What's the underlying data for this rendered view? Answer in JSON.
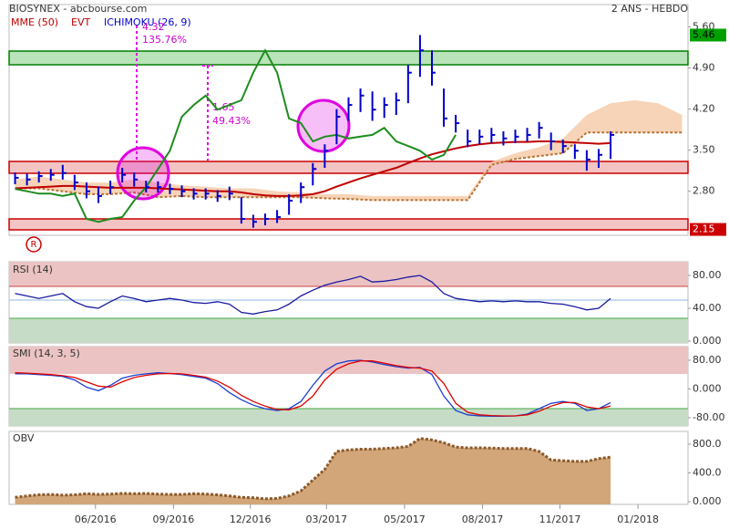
{
  "header": {
    "left": "BIOSYNEX - abcbourse.com",
    "right": "2 ANS - HEBDO",
    "evt": "EVT"
  },
  "chart_data": [
    {
      "type": "ohlc",
      "color": "#0000cc",
      "x": [
        0,
        2,
        4,
        6,
        8,
        10,
        12,
        14,
        16,
        18,
        20,
        22,
        24,
        26,
        28,
        30,
        32,
        34,
        36,
        38,
        40,
        42,
        44,
        46,
        48,
        50,
        52,
        54,
        56,
        58,
        60,
        62,
        64,
        66,
        68,
        70,
        72,
        74,
        76,
        78,
        80,
        82,
        84,
        86,
        88,
        90,
        92,
        94,
        96,
        98,
        100
      ],
      "high": [
        3.12,
        3.1,
        3.14,
        3.18,
        3.25,
        3.08,
        2.95,
        2.88,
        2.98,
        3.2,
        3.12,
        2.98,
        2.97,
        2.93,
        2.9,
        2.85,
        2.85,
        2.82,
        2.88,
        2.7,
        2.4,
        2.42,
        2.48,
        2.75,
        2.95,
        3.28,
        3.6,
        4.2,
        4.4,
        4.55,
        4.5,
        4.4,
        4.48,
        4.95,
        5.46,
        5.2,
        4.55,
        4.1,
        3.85,
        3.85,
        3.88,
        3.82,
        3.85,
        3.88,
        3.98,
        3.8,
        3.68,
        3.6,
        3.5,
        3.52,
        3.82
      ],
      "low": [
        2.92,
        2.9,
        2.95,
        2.98,
        3.0,
        2.82,
        2.68,
        2.6,
        2.75,
        2.95,
        2.88,
        2.78,
        2.78,
        2.75,
        2.7,
        2.66,
        2.66,
        2.62,
        2.65,
        2.25,
        2.18,
        2.22,
        2.26,
        2.4,
        2.6,
        2.9,
        3.2,
        3.6,
        4.0,
        4.15,
        4.0,
        4.05,
        4.1,
        4.3,
        4.75,
        4.6,
        3.9,
        3.8,
        3.55,
        3.6,
        3.62,
        3.58,
        3.62,
        3.65,
        3.7,
        3.5,
        3.45,
        3.35,
        3.15,
        3.2,
        3.35
      ],
      "close": [
        3.03,
        3.0,
        3.06,
        3.08,
        3.11,
        2.95,
        2.8,
        2.72,
        2.87,
        3.08,
        3.0,
        2.87,
        2.87,
        2.84,
        2.8,
        2.76,
        2.76,
        2.72,
        2.76,
        2.33,
        2.28,
        2.33,
        2.36,
        2.64,
        2.87,
        3.18,
        3.49,
        4.07,
        4.27,
        4.43,
        4.19,
        4.27,
        4.35,
        4.82,
        5.2,
        4.82,
        4.04,
        3.96,
        3.65,
        3.73,
        3.76,
        3.7,
        3.73,
        3.76,
        3.88,
        3.65,
        3.57,
        3.49,
        3.34,
        3.42,
        3.76
      ],
      "series": [
        {
          "name": "MME (50)",
          "color": "#c00000",
          "values": [
            2.85,
            2.86,
            2.87,
            2.88,
            2.89,
            2.89,
            2.88,
            2.87,
            2.86,
            2.86,
            2.86,
            2.86,
            2.85,
            2.84,
            2.83,
            2.82,
            2.81,
            2.8,
            2.8,
            2.78,
            2.75,
            2.73,
            2.72,
            2.72,
            2.73,
            2.75,
            2.8,
            2.88,
            2.95,
            3.02,
            3.08,
            3.14,
            3.2,
            3.28,
            3.36,
            3.43,
            3.48,
            3.53,
            3.57,
            3.6,
            3.62,
            3.63,
            3.64,
            3.64,
            3.65,
            3.65,
            3.64,
            3.63,
            3.62,
            3.61,
            3.62
          ]
        },
        {
          "name": "ICHIMOKU (26, 9)",
          "color": "#1e8c1e",
          "values": [
            2.84,
            2.8,
            2.76,
            2.76,
            2.72,
            2.76,
            2.33,
            2.28,
            2.33,
            2.36,
            2.64,
            2.87,
            3.18,
            3.49,
            4.07,
            4.27,
            4.43,
            4.19,
            4.27,
            4.35,
            4.82,
            5.2,
            4.82,
            4.04,
            3.96,
            3.65,
            3.73,
            3.76,
            3.7,
            3.73,
            3.76,
            3.88,
            3.65,
            3.57,
            3.49,
            3.34,
            3.42,
            3.76,
            null,
            null,
            null,
            null,
            null,
            null,
            null,
            null,
            null,
            null,
            null,
            null,
            null
          ]
        }
      ],
      "cloud": {
        "color": "#f5c9a6",
        "edge": "#b87333",
        "x": [
          0,
          4,
          8,
          12,
          16,
          20,
          24,
          28,
          32,
          36,
          40,
          44,
          48,
          52,
          56,
          60,
          64,
          68,
          72,
          76,
          80,
          84,
          88,
          92,
          96,
          100,
          104,
          108,
          112
        ],
        "upper": [
          3.0,
          3.05,
          3.0,
          2.95,
          2.95,
          3.0,
          2.95,
          2.9,
          2.88,
          2.85,
          2.85,
          2.8,
          2.78,
          2.75,
          2.75,
          2.72,
          2.72,
          2.72,
          2.72,
          2.72,
          3.3,
          3.45,
          3.55,
          3.7,
          4.1,
          4.3,
          4.35,
          4.3,
          4.1
        ],
        "lower": [
          2.85,
          2.85,
          2.8,
          2.75,
          2.75,
          2.78,
          2.7,
          2.72,
          2.7,
          2.7,
          2.7,
          2.7,
          2.7,
          2.68,
          2.67,
          2.65,
          2.65,
          2.65,
          2.65,
          2.65,
          3.25,
          3.35,
          3.4,
          3.45,
          3.8,
          3.8,
          3.8,
          3.8,
          3.8
        ]
      },
      "xlim": [
        -1,
        113
      ],
      "ylim": [
        2.05,
        5.98
      ],
      "yticks": [
        {
          "value": 5.6,
          "label": "5.60"
        },
        {
          "value": 4.9,
          "label": "4.90"
        },
        {
          "value": 4.2,
          "label": "4.20"
        },
        {
          "value": 3.5,
          "label": "3.50"
        },
        {
          "value": 2.8,
          "label": "2.80"
        }
      ],
      "xticks": [
        {
          "value": 13.5,
          "label": "06/2016"
        },
        {
          "value": 26.6,
          "label": "09/2016"
        },
        {
          "value": 39.5,
          "label": "12/2016"
        },
        {
          "value": 52.3,
          "label": "03/2017"
        },
        {
          "value": 65.4,
          "label": "05/2017"
        },
        {
          "value": 78.5,
          "label": "08/2017"
        },
        {
          "value": 91.5,
          "label": "11/2017"
        },
        {
          "value": 104.6,
          "label": "01/2018"
        }
      ],
      "price_tags": [
        {
          "value": 5.46,
          "color": "#00a000",
          "text_color": "#000000"
        },
        {
          "value": 2.15,
          "color": "#cc0000",
          "text_color": "#ffffff"
        }
      ],
      "measures": [
        {
          "labels": [
            "4.32",
            "135.76%"
          ]
        },
        {
          "labels": [
            "1.65",
            "49.43%"
          ]
        }
      ]
    },
    {
      "type": "line",
      "title": "RSI (14)",
      "color": "#1a1aa0",
      "ylim": [
        0,
        100
      ],
      "yticks": [
        {
          "value": 80,
          "label": "80.00"
        },
        {
          "value": 40,
          "label": "40.00"
        },
        {
          "value": 0,
          "label": "0.000"
        }
      ],
      "values": [
        58,
        55,
        52,
        55,
        58,
        48,
        42,
        40,
        48,
        55,
        52,
        48,
        50,
        52,
        50,
        47,
        46,
        48,
        45,
        35,
        33,
        36,
        38,
        45,
        55,
        62,
        68,
        72,
        75,
        79,
        72,
        73,
        75,
        78,
        80,
        72,
        58,
        52,
        50,
        48,
        49,
        48,
        49,
        48,
        48,
        46,
        45,
        42,
        38,
        40,
        52
      ]
    },
    {
      "type": "line",
      "title": "SMI (14, 3, 5)",
      "ylim": [
        -103,
        118
      ],
      "yticks": [
        {
          "value": 80,
          "label": "80.00"
        },
        {
          "value": 0,
          "label": "0.000"
        },
        {
          "value": -80,
          "label": "-80.00"
        }
      ],
      "series": [
        {
          "color": "#1a3fd0",
          "values": [
            42,
            42,
            40,
            38,
            35,
            25,
            5,
            -5,
            10,
            30,
            38,
            42,
            45,
            43,
            40,
            35,
            30,
            15,
            -10,
            -30,
            -45,
            -55,
            -60,
            -55,
            -35,
            10,
            50,
            70,
            78,
            80,
            75,
            68,
            62,
            58,
            60,
            40,
            -20,
            -60,
            -72,
            -75,
            -76,
            -76,
            -75,
            -70,
            -55,
            -40,
            -35,
            -40,
            -60,
            -55,
            -38
          ]
        },
        {
          "color": "#e00000",
          "values": [
            45,
            44,
            42,
            40,
            37,
            32,
            20,
            8,
            5,
            20,
            32,
            38,
            42,
            43,
            42,
            38,
            33,
            22,
            5,
            -18,
            -35,
            -48,
            -57,
            -58,
            -48,
            -20,
            25,
            55,
            70,
            78,
            78,
            72,
            65,
            60,
            58,
            50,
            15,
            -40,
            -65,
            -72,
            -74,
            -75,
            -75,
            -72,
            -62,
            -48,
            -38,
            -38,
            -50,
            -55,
            -48
          ]
        }
      ]
    },
    {
      "type": "area",
      "title": "OBV",
      "color": "#d2a679",
      "edge": "#8b5a2b",
      "ylim": [
        -38,
        978
      ],
      "yticks": [
        {
          "value": 800,
          "label": "800.0"
        },
        {
          "value": 400,
          "label": "400.0"
        },
        {
          "value": 0,
          "label": "0.000"
        }
      ],
      "values": [
        60,
        80,
        95,
        100,
        90,
        95,
        110,
        100,
        105,
        115,
        110,
        115,
        105,
        100,
        100,
        110,
        105,
        95,
        80,
        60,
        55,
        40,
        45,
        80,
        150,
        300,
        450,
        700,
        720,
        730,
        730,
        740,
        750,
        770,
        880,
        860,
        820,
        760,
        750,
        750,
        745,
        740,
        740,
        740,
        700,
        580,
        570,
        560,
        560,
        600,
        620
      ]
    }
  ]
}
